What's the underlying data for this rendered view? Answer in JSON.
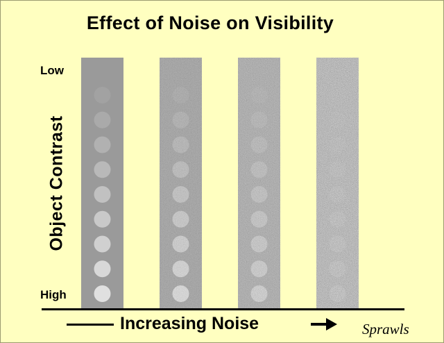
{
  "title": "Effect of Noise on Visibility",
  "y_axis": {
    "label": "Object Contrast",
    "low_label": "Low",
    "high_label": "High"
  },
  "x_axis": {
    "label": "Increasing Noise"
  },
  "credit": "Sprawls",
  "icons": {
    "arrow": "right-arrow-icon"
  },
  "colors": {
    "background": "#ffffc0",
    "panel": "#9a9a9a",
    "text": "#000000"
  },
  "panels": [
    {
      "noise_level": 0
    },
    {
      "noise_level": 1
    },
    {
      "noise_level": 2
    },
    {
      "noise_level": 3
    }
  ],
  "objects_per_panel": 9
}
